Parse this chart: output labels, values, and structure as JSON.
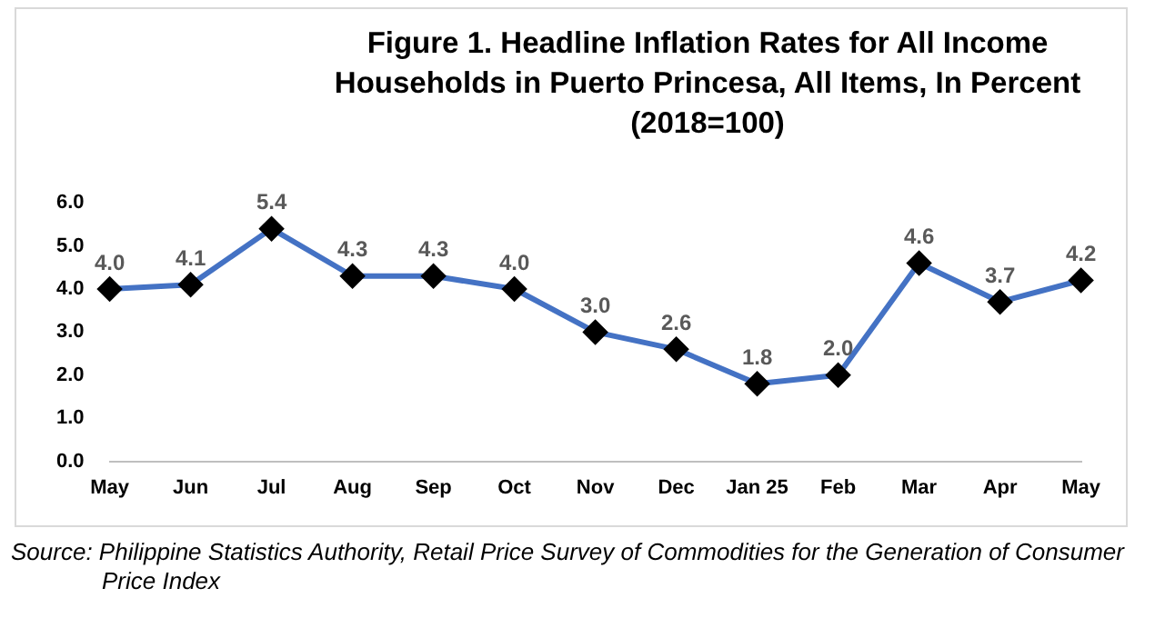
{
  "chart_data": {
    "type": "line",
    "title": "Figure 1. Headline Inflation Rates for All Income Households in Puerto Princesa, All Items, In Percent\n(2018=100)",
    "categories": [
      "May",
      "Jun",
      "Jul",
      "Aug",
      "Sep",
      "Oct",
      "Nov",
      "Dec",
      "Jan 25",
      "Feb",
      "Mar",
      "Apr",
      "May"
    ],
    "series": [
      {
        "color": "#4472c4",
        "values": [
          4.0,
          4.1,
          5.4,
          4.3,
          4.3,
          4.0,
          3.0,
          2.6,
          1.8,
          2.0,
          4.6,
          3.7,
          4.2
        ],
        "value_labels": [
          "4.0",
          "4.1",
          "5.4",
          "4.3",
          "4.3",
          "4.0",
          "3.0",
          "2.6",
          "1.8",
          "2.0",
          "4.6",
          "3.7",
          "4.2"
        ]
      }
    ],
    "ylim": [
      0,
      6
    ],
    "yticks": [
      {
        "value": 0,
        "label": "0.0"
      },
      {
        "value": 1,
        "label": "1.0"
      },
      {
        "value": 2,
        "label": "2.0"
      },
      {
        "value": 3,
        "label": "3.0"
      },
      {
        "value": 4,
        "label": "4.0"
      },
      {
        "value": 5,
        "label": "5.0"
      },
      {
        "value": 6,
        "label": "6.0"
      }
    ],
    "grid": false,
    "legend": false,
    "marker": "diamond",
    "line_style": "solid",
    "annotations": [
      "Source: Philippine Statistics Authority, Retail Price Survey of Commodities for the Generation of Consumer Price Index"
    ]
  }
}
